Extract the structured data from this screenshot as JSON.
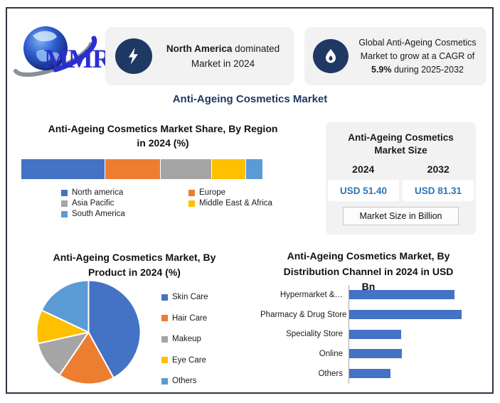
{
  "logo": {
    "icon": "globe-icon",
    "text": "MMR"
  },
  "header_cards": [
    {
      "icon": "lightning-icon",
      "line1_bold": "North America",
      "line1_rest": " dominated",
      "line2": "Market in 2024"
    },
    {
      "icon": "flame-icon",
      "line1": "Global Anti-Ageing Cosmetics",
      "line2": "Market to grow at a CAGR of",
      "line3_bold": "5.9%",
      "line3_rest": " during 2025-2032"
    }
  ],
  "main_title": "Anti-Ageing Cosmetics Market",
  "market_size_panel": {
    "title_lines": [
      "Anti-Ageing Cosmetics",
      "Market Size"
    ],
    "years": [
      "2024",
      "2032"
    ],
    "values": [
      "USD 51.40",
      "USD 81.31"
    ],
    "footer": "Market Size in Billion"
  },
  "colors": {
    "accent_navy": "#1F3864",
    "value_blue": "#2E75B6",
    "card_bg": "#F2F2F2",
    "frame_border": "#2E3642",
    "palette": [
      "#4472C4",
      "#ED7D31",
      "#A5A5A5",
      "#FFC000",
      "#5B9BD5"
    ]
  },
  "chart_data": [
    {
      "type": "bar",
      "subtype": "stacked-horizontal-100pct",
      "title": "Anti-Ageing Cosmetics Market Share, By Region in 2024 (%)",
      "title_lines": [
        "Anti-Ageing Cosmetics Market Share, By Region",
        "in 2024 (%)"
      ],
      "categories": [
        "North america",
        "Europe",
        "Asia Pacific",
        "Middle East & Africa",
        "South America"
      ],
      "values": [
        35,
        23,
        21,
        14,
        7
      ],
      "unit": "%",
      "colors": [
        "#4472C4",
        "#ED7D31",
        "#A5A5A5",
        "#FFC000",
        "#5B9BD5"
      ],
      "legend_position": "bottom"
    },
    {
      "type": "pie",
      "title": "Anti-Ageing Cosmetics Market, By Product in 2024 (%)",
      "title_lines": [
        "Anti-Ageing Cosmetics Market, By",
        "Product in 2024 (%)"
      ],
      "categories": [
        "Skin Care",
        "Hair Care",
        "Makeup",
        "Eye Care",
        "Others"
      ],
      "values": [
        42,
        17.5,
        12,
        10.5,
        18
      ],
      "unit": "%",
      "start_angle": "top, clockwise",
      "colors": [
        "#4472C4",
        "#ED7D31",
        "#A5A5A5",
        "#FFC000",
        "#5B9BD5"
      ],
      "legend_position": "right"
    },
    {
      "type": "bar",
      "subtype": "horizontal",
      "title": "Anti-Ageing Cosmetics Market, By Distribution Channel in 2024 in USD Bn",
      "title_lines": [
        "Anti-Ageing Cosmetics Market, By",
        "Distribution Channel in 2024 in USD",
        "Bn"
      ],
      "categories": [
        "Hypermarket &…",
        "Pharmacy & Drug Store",
        "Speciality Store",
        "Online",
        "Others"
      ],
      "values": [
        15,
        16,
        7.4,
        7.5,
        5.9
      ],
      "unit": "USD Bn",
      "bar_color": "#4472C4",
      "grid": "off",
      "axis_labels": "none"
    }
  ]
}
